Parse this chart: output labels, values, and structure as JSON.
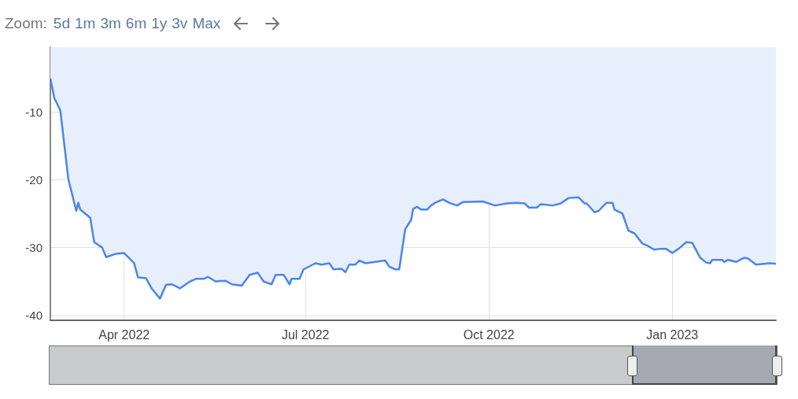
{
  "chart_data": {
    "type": "area",
    "annotations": [
      "Zoom:",
      "5d",
      "1m",
      "3m",
      "6m",
      "1y",
      "3v",
      "Max"
    ],
    "xlim": [
      "2022-02-23",
      "2023-02-22"
    ],
    "xticks": [
      {
        "value": "2022-04-01",
        "label": "Apr 2022"
      },
      {
        "value": "2022-07-01",
        "label": "Jul 2022"
      },
      {
        "value": "2022-10-01",
        "label": "Oct 2022"
      },
      {
        "value": "2023-01-01",
        "label": "Jan 2023"
      }
    ],
    "ylim": [
      -40.7,
      -0.5
    ],
    "yticks": [
      -10,
      -20,
      -30,
      -40
    ],
    "grid": true,
    "marker": "none",
    "line_style": "solid",
    "x": [
      "2022-02-23",
      "2022-02-25",
      "2022-02-28",
      "2022-03-04",
      "2022-03-08",
      "2022-03-09",
      "2022-03-10",
      "2022-03-15",
      "2022-03-17",
      "2022-03-21",
      "2022-03-23",
      "2022-03-28",
      "2022-04-01",
      "2022-04-06",
      "2022-04-08",
      "2022-04-12",
      "2022-04-15",
      "2022-04-19",
      "2022-04-22",
      "2022-04-25",
      "2022-04-29",
      "2022-05-04",
      "2022-05-07",
      "2022-05-11",
      "2022-05-13",
      "2022-05-17",
      "2022-05-19",
      "2022-05-22",
      "2022-05-25",
      "2022-05-30",
      "2022-06-03",
      "2022-06-07",
      "2022-06-10",
      "2022-06-14",
      "2022-06-16",
      "2022-06-20",
      "2022-06-23",
      "2022-06-24",
      "2022-06-28",
      "2022-06-30",
      "2022-07-06",
      "2022-07-09",
      "2022-07-13",
      "2022-07-15",
      "2022-07-19",
      "2022-07-21",
      "2022-07-23",
      "2022-07-26",
      "2022-07-28",
      "2022-07-31",
      "2022-08-10",
      "2022-08-12",
      "2022-08-15",
      "2022-08-17",
      "2022-08-20",
      "2022-08-23",
      "2022-08-24",
      "2022-08-26",
      "2022-08-28",
      "2022-08-31",
      "2022-09-02",
      "2022-09-04",
      "2022-09-08",
      "2022-09-11",
      "2022-09-15",
      "2022-09-18",
      "2022-09-28",
      "2022-10-04",
      "2022-10-10",
      "2022-10-15",
      "2022-10-19",
      "2022-10-21",
      "2022-10-25",
      "2022-10-27",
      "2022-11-02",
      "2022-11-06",
      "2022-11-10",
      "2022-11-15",
      "2022-11-18",
      "2022-11-19",
      "2022-11-23",
      "2022-11-25",
      "2022-11-29",
      "2022-12-02",
      "2022-12-03",
      "2022-12-07",
      "2022-12-10",
      "2022-12-13",
      "2022-12-17",
      "2022-12-20",
      "2022-12-23",
      "2022-12-25",
      "2022-12-29",
      "2023-01-01",
      "2023-01-04",
      "2023-01-08",
      "2023-01-11",
      "2023-01-15",
      "2023-01-18",
      "2023-01-20",
      "2023-01-21",
      "2023-01-26",
      "2023-01-27",
      "2023-01-29",
      "2023-02-02",
      "2023-02-06",
      "2023-02-08",
      "2023-02-12",
      "2023-02-19",
      "2023-02-22"
    ],
    "series": [
      {
        "color": "#4a86e8",
        "values": [
          -5.1,
          -8.0,
          -9.8,
          -19.9,
          -24.6,
          -23.4,
          -24.4,
          -25.6,
          -29.2,
          -30.0,
          -31.4,
          -30.9,
          -30.8,
          -32.3,
          -34.4,
          -34.5,
          -36.1,
          -37.5,
          -35.5,
          -35.4,
          -36.0,
          -35.0,
          -34.6,
          -34.6,
          -34.3,
          -35.0,
          -34.9,
          -34.9,
          -35.4,
          -35.6,
          -34.0,
          -33.7,
          -35.0,
          -35.4,
          -34.0,
          -34.0,
          -35.4,
          -34.6,
          -34.6,
          -33.2,
          -32.3,
          -32.5,
          -32.3,
          -33.2,
          -33.1,
          -33.6,
          -32.5,
          -32.5,
          -31.9,
          -32.3,
          -31.9,
          -32.8,
          -33.2,
          -33.2,
          -27.3,
          -25.9,
          -24.3,
          -24.0,
          -24.4,
          -24.4,
          -23.8,
          -23.4,
          -22.9,
          -23.4,
          -23.8,
          -23.3,
          -23.2,
          -23.8,
          -23.5,
          -23.4,
          -23.5,
          -24.1,
          -24.1,
          -23.6,
          -23.8,
          -23.5,
          -22.7,
          -22.6,
          -23.5,
          -23.5,
          -24.8,
          -24.6,
          -23.4,
          -23.4,
          -24.4,
          -25.0,
          -27.5,
          -27.9,
          -29.4,
          -29.8,
          -30.3,
          -30.2,
          -30.2,
          -30.8,
          -30.2,
          -29.2,
          -29.3,
          -31.5,
          -32.2,
          -32.3,
          -31.8,
          -31.8,
          -32.1,
          -31.8,
          -32.1,
          -31.5,
          -31.6,
          -32.5,
          -32.3,
          -32.4
        ]
      }
    ]
  }
}
